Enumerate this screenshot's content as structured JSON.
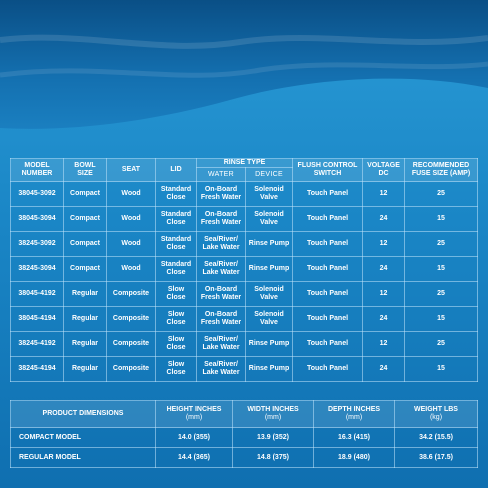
{
  "model_table": {
    "headers": [
      "MODEL NUMBER",
      "BOWL SIZE",
      "SEAT",
      "LID",
      "RINSE TYPE",
      "FLUSH CONTROL SWITCH",
      "VOLTAGE DC",
      "RECOMMENDED FUSE SIZE (AMP)"
    ],
    "rinse_subheaders": [
      "WATER",
      "DEVICE"
    ],
    "rows": [
      [
        "38045-3092",
        "Compact",
        "Wood",
        "Standard Close",
        "On-Board Fresh Water",
        "Solenoid Valve",
        "Touch Panel",
        "12",
        "25"
      ],
      [
        "38045-3094",
        "Compact",
        "Wood",
        "Standard Close",
        "On-Board Fresh Water",
        "Solenoid Valve",
        "Touch Panel",
        "24",
        "15"
      ],
      [
        "38245-3092",
        "Compact",
        "Wood",
        "Standard Close",
        "Sea/River/ Lake Water",
        "Rinse Pump",
        "Touch Panel",
        "12",
        "25"
      ],
      [
        "38245-3094",
        "Compact",
        "Wood",
        "Standard Close",
        "Sea/River/ Lake Water",
        "Rinse Pump",
        "Touch Panel",
        "24",
        "15"
      ],
      [
        "38045-4192",
        "Regular",
        "Composite",
        "Slow Close",
        "On-Board Fresh Water",
        "Solenoid Valve",
        "Touch Panel",
        "12",
        "25"
      ],
      [
        "38045-4194",
        "Regular",
        "Composite",
        "Slow Close",
        "On-Board Fresh Water",
        "Solenoid Valve",
        "Touch Panel",
        "24",
        "15"
      ],
      [
        "38245-4192",
        "Regular",
        "Composite",
        "Slow Close",
        "Sea/River/ Lake Water",
        "Rinse Pump",
        "Touch Panel",
        "12",
        "25"
      ],
      [
        "38245-4194",
        "Regular",
        "Composite",
        "Slow Close",
        "Sea/River/ Lake Water",
        "Rinse Pump",
        "Touch Panel",
        "24",
        "15"
      ]
    ]
  },
  "dimensions_table": {
    "headers": [
      "PRODUCT DIMENSIONS",
      "HEIGHT INCHES",
      "WIDTH INCHES",
      "DEPTH INCHES",
      "WEIGHT LBS"
    ],
    "header_units": [
      null,
      "(mm)",
      "(mm)",
      "(mm)",
      "(kg)"
    ],
    "rows": [
      [
        "COMPACT MODEL",
        "14.0 (355)",
        "13.9 (352)",
        "16.3 (415)",
        "34.2 (15.5)"
      ],
      [
        "REGULAR MODEL",
        "14.4 (365)",
        "14.8 (375)",
        "18.9 (480)",
        "38.6 (17.5)"
      ]
    ]
  }
}
